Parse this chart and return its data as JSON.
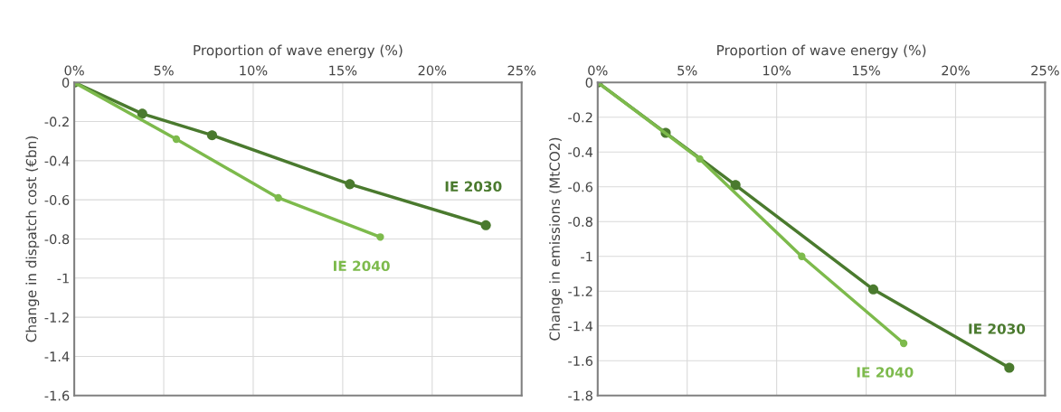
{
  "chart_data": [
    {
      "type": "line",
      "xlabel": "Proportion of wave energy (%)",
      "ylabel": "Change in dispatch cost (€bn)",
      "xlim": [
        0,
        25
      ],
      "xticks": [
        {
          "value": 0,
          "label": "0%"
        },
        {
          "value": 5,
          "label": "5%"
        },
        {
          "value": 10,
          "label": "10%"
        },
        {
          "value": 15,
          "label": "15%"
        },
        {
          "value": 20,
          "label": "20%"
        },
        {
          "value": 25,
          "label": "25%"
        }
      ],
      "ylim": [
        -1.6,
        0
      ],
      "yticks": [
        0,
        {
          "value": -0.2,
          "label": "-0.2"
        },
        {
          "value": -0.4,
          "label": "-0.4"
        },
        {
          "value": -0.6,
          "label": "-0.6"
        },
        {
          "value": -0.8,
          "label": "-0.8"
        },
        {
          "value": -1,
          "label": "-1"
        },
        {
          "value": -1.2,
          "label": "-1.2"
        },
        {
          "value": -1.4,
          "label": "-1.4"
        },
        {
          "value": -1.6,
          "label": "-1.6"
        }
      ],
      "grid": true,
      "marker": "circle",
      "series": [
        {
          "name": "IE 2030",
          "color": "#4a7a2e",
          "x": [
            0,
            3.8,
            7.7,
            15.4,
            23
          ],
          "values": [
            0,
            -0.16,
            -0.27,
            -0.52,
            -0.73
          ]
        },
        {
          "name": "IE 2040",
          "color": "#7dba4c",
          "x": [
            0,
            5.7,
            11.4,
            17.1
          ],
          "values": [
            0,
            -0.29,
            -0.59,
            -0.79
          ]
        }
      ]
    },
    {
      "type": "line",
      "xlabel": "Proportion of wave energy (%)",
      "ylabel": "Change in emissions (MtCO2)",
      "xlim": [
        0,
        25
      ],
      "xticks": [
        {
          "value": 0,
          "label": "0%"
        },
        {
          "value": 5,
          "label": "5%"
        },
        {
          "value": 10,
          "label": "10%"
        },
        {
          "value": 15,
          "label": "15%"
        },
        {
          "value": 20,
          "label": "20%"
        },
        {
          "value": 25,
          "label": "25%"
        }
      ],
      "ylim": [
        -1.8,
        0
      ],
      "yticks": [
        0,
        {
          "value": -0.2,
          "label": "-0.2"
        },
        {
          "value": -0.4,
          "label": "-0.4"
        },
        {
          "value": -0.6,
          "label": "-0.6"
        },
        {
          "value": -0.8,
          "label": "-0.8"
        },
        {
          "value": -1,
          "label": "-1"
        },
        {
          "value": -1.2,
          "label": "-1.2"
        },
        {
          "value": -1.4,
          "label": "-1.4"
        },
        {
          "value": -1.6,
          "label": "-1.6"
        },
        {
          "value": -1.8,
          "label": "-1.8"
        }
      ],
      "grid": true,
      "marker": "circle",
      "series": [
        {
          "name": "IE 2030",
          "color": "#4a7a2e",
          "x": [
            0,
            3.8,
            7.7,
            15.4,
            23
          ],
          "values": [
            0,
            -0.29,
            -0.59,
            -1.19,
            -1.64
          ]
        },
        {
          "name": "IE 2040",
          "color": "#7dba4c",
          "x": [
            0,
            5.7,
            11.4,
            17.1
          ],
          "values": [
            0,
            -0.44,
            -1.0,
            -1.5
          ]
        }
      ]
    }
  ]
}
